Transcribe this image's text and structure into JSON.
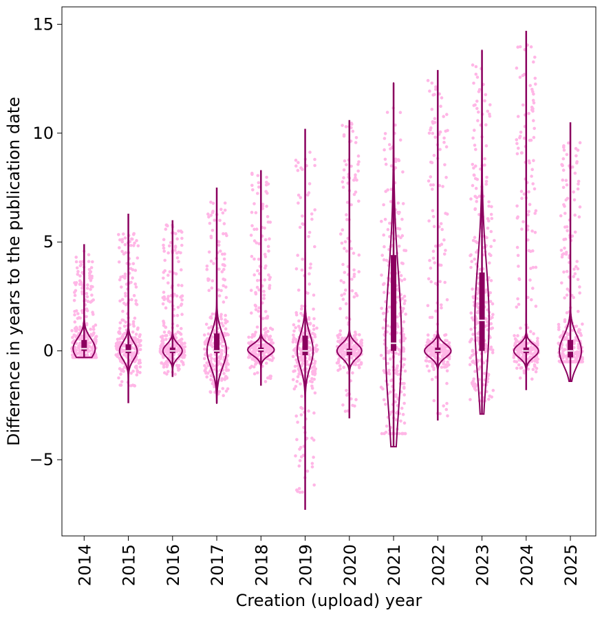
{
  "chart_data": {
    "type": "violin-strip",
    "title": "",
    "xlabel": "Creation (upload) year",
    "ylabel": "Difference in years to the publication date",
    "ylim": [
      -8.5,
      15.8
    ],
    "yticks": [
      -5,
      0,
      5,
      10,
      15
    ],
    "ytick_labels": [
      "−5",
      "0",
      "5",
      "10",
      "15"
    ],
    "categories": [
      "2014",
      "2015",
      "2016",
      "2017",
      "2018",
      "2019",
      "2020",
      "2021",
      "2022",
      "2023",
      "2024",
      "2025"
    ],
    "colors": {
      "points": "#ffb6e6",
      "violin": "#8b005f",
      "median": "#ffffff"
    },
    "years": [
      {
        "year": "2014",
        "min": -0.3,
        "max": 4.9,
        "q1": 0.0,
        "median": 0.1,
        "q3": 0.5,
        "p_lo": -0.3,
        "p_hi": 4.6,
        "width": 0.25
      },
      {
        "year": "2015",
        "min": -2.4,
        "max": 6.3,
        "q1": -0.1,
        "median": 0.0,
        "q3": 0.3,
        "p_lo": -1.7,
        "p_hi": 5.5,
        "width": 0.2
      },
      {
        "year": "2016",
        "min": -1.2,
        "max": 6.0,
        "q1": -0.1,
        "median": 0.0,
        "q3": 0.15,
        "p_lo": -1.1,
        "p_hi": 5.8,
        "width": 0.22
      },
      {
        "year": "2017",
        "min": -2.4,
        "max": 7.5,
        "q1": -0.1,
        "median": 0.0,
        "q3": 0.8,
        "p_lo": -2.1,
        "p_hi": 6.9,
        "width": 0.22
      },
      {
        "year": "2018",
        "min": -1.6,
        "max": 8.3,
        "q1": -0.05,
        "median": 0.05,
        "q3": 0.15,
        "p_lo": -1.5,
        "p_hi": 8.2,
        "width": 0.3
      },
      {
        "year": "2019",
        "min": -7.3,
        "max": 10.2,
        "q1": -0.2,
        "median": 0.0,
        "q3": 0.7,
        "p_lo": -6.7,
        "p_hi": 9.3,
        "width": 0.18
      },
      {
        "year": "2020",
        "min": -3.1,
        "max": 10.6,
        "q1": -0.2,
        "median": 0.0,
        "q3": 0.1,
        "p_lo": -2.8,
        "p_hi": 10.5,
        "width": 0.28
      },
      {
        "year": "2021",
        "min": -4.4,
        "max": 12.3,
        "q1": 0.0,
        "median": 0.35,
        "q3": 4.4,
        "p_lo": -3.8,
        "p_hi": 11.3,
        "width": 0.18
      },
      {
        "year": "2022",
        "min": -3.2,
        "max": 12.9,
        "q1": -0.1,
        "median": 0.0,
        "q3": 0.15,
        "p_lo": -3.0,
        "p_hi": 12.8,
        "width": 0.3
      },
      {
        "year": "2023",
        "min": -2.9,
        "max": 13.8,
        "q1": 0.0,
        "median": 1.4,
        "q3": 3.6,
        "p_lo": -2.3,
        "p_hi": 13.3,
        "width": 0.16
      },
      {
        "year": "2024",
        "min": -1.8,
        "max": 14.7,
        "q1": -0.1,
        "median": 0.0,
        "q3": 0.15,
        "p_lo": -1.3,
        "p_hi": 14.1,
        "width": 0.28
      },
      {
        "year": "2025",
        "min": -1.4,
        "max": 10.5,
        "q1": -0.3,
        "median": 0.0,
        "q3": 0.5,
        "p_lo": -0.5,
        "p_hi": 10.0,
        "width": 0.25
      }
    ]
  }
}
